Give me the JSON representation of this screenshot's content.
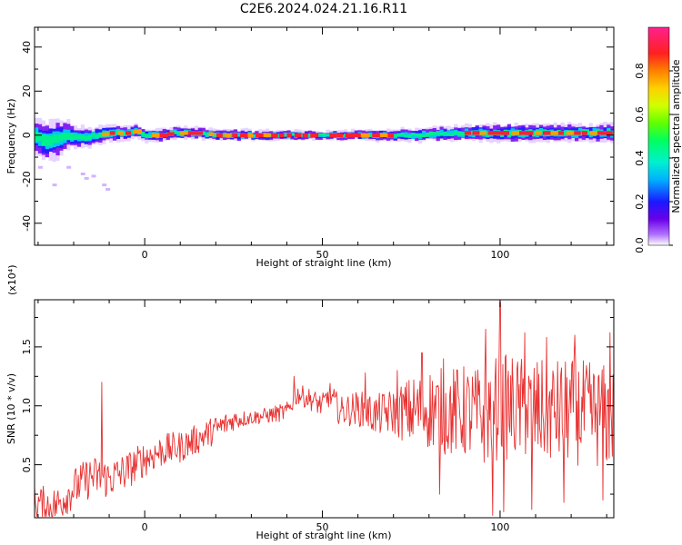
{
  "title": "C2E6.2024.024.21.16.R11",
  "chart_data": [
    {
      "type": "heatmap",
      "xlabel": "Height of straight line (km)",
      "ylabel": "Frequency (Hz)",
      "xlim": [
        -31,
        132
      ],
      "ylim": [
        -50,
        49
      ],
      "xticks": [
        0,
        50,
        100
      ],
      "yticks": [
        -40,
        -20,
        0,
        20,
        40
      ],
      "colorbar": {
        "label": "Normalized spectral amplitude",
        "range": [
          0.0,
          1.0
        ],
        "ticks": [
          "0.0",
          "0.2",
          "0.4",
          "0.6",
          "0.8"
        ]
      },
      "band": {
        "center_hz": [
          [
            -31,
            0
          ],
          [
            -28,
            -3
          ],
          [
            -25,
            -2
          ],
          [
            -22,
            0
          ],
          [
            -19,
            -1
          ],
          [
            -16,
            -1
          ],
          [
            -13,
            0
          ],
          [
            -10,
            1
          ],
          [
            -5,
            1
          ],
          [
            -2,
            2
          ],
          [
            0,
            0
          ],
          [
            5,
            0
          ],
          [
            8,
            1
          ],
          [
            15,
            1
          ],
          [
            20,
            0
          ],
          [
            60,
            0
          ],
          [
            75,
            0
          ],
          [
            90,
            1
          ],
          [
            100,
            1
          ],
          [
            110,
            1
          ],
          [
            120,
            1
          ],
          [
            125,
            1
          ],
          [
            132,
            1
          ]
        ],
        "halfwidth_hz": [
          [
            -31,
            8
          ],
          [
            -25,
            9
          ],
          [
            -20,
            5
          ],
          [
            -13,
            4
          ],
          [
            0,
            3
          ],
          [
            50,
            2
          ],
          [
            80,
            3
          ],
          [
            100,
            4
          ],
          [
            132,
            4
          ]
        ],
        "peak_segments_km": [
          [
            -12,
            -2
          ],
          [
            2,
            8
          ],
          [
            10,
            15
          ],
          [
            18,
            48
          ],
          [
            52,
            62
          ],
          [
            64,
            70
          ],
          [
            90,
            132
          ]
        ],
        "scatter_tail": [
          {
            "x": -18,
            "y": -17
          },
          {
            "x": -17,
            "y": -19
          },
          {
            "x": -15,
            "y": -18
          },
          {
            "x": -12,
            "y": -22
          },
          {
            "x": -11,
            "y": -24
          },
          {
            "x": -22,
            "y": -14
          },
          {
            "x": -26,
            "y": -22
          },
          {
            "x": -30,
            "y": -14
          }
        ]
      }
    },
    {
      "type": "line",
      "xlabel": "Height of straight line (km)",
      "ylabel": "SNR (10 * v/v)",
      "multiplier": "(x10⁴)",
      "xlim": [
        -31,
        132
      ],
      "ylim": [
        0.05,
        1.9
      ],
      "xticks": [
        0,
        50,
        100
      ],
      "yticks": [
        0.5,
        1.0,
        1.5
      ],
      "color": "#e83030",
      "envelope": [
        [
          -31,
          0.18
        ],
        [
          -25,
          0.15
        ],
        [
          -20,
          0.3
        ],
        [
          -15,
          0.4
        ],
        [
          -10,
          0.38
        ],
        [
          -5,
          0.45
        ],
        [
          0,
          0.55
        ],
        [
          5,
          0.62
        ],
        [
          10,
          0.65
        ],
        [
          15,
          0.72
        ],
        [
          20,
          0.8
        ],
        [
          25,
          0.88
        ],
        [
          30,
          0.9
        ],
        [
          35,
          0.92
        ],
        [
          40,
          0.95
        ],
        [
          43,
          1.1
        ],
        [
          47,
          1.05
        ],
        [
          50,
          1.0
        ],
        [
          52,
          1.1
        ],
        [
          55,
          0.95
        ],
        [
          60,
          0.98
        ],
        [
          65,
          0.92
        ],
        [
          70,
          0.95
        ],
        [
          75,
          0.95
        ],
        [
          80,
          0.98
        ],
        [
          85,
          0.95
        ],
        [
          90,
          0.95
        ],
        [
          95,
          0.9
        ],
        [
          100,
          1.0
        ],
        [
          110,
          0.95
        ],
        [
          120,
          0.95
        ],
        [
          132,
          0.9
        ]
      ],
      "noise_amplitude": [
        [
          -31,
          0.15
        ],
        [
          -15,
          0.18
        ],
        [
          0,
          0.15
        ],
        [
          20,
          0.12
        ],
        [
          30,
          0.06
        ],
        [
          40,
          0.08
        ],
        [
          50,
          0.1
        ],
        [
          60,
          0.15
        ],
        [
          70,
          0.2
        ],
        [
          75,
          0.3
        ],
        [
          80,
          0.35
        ],
        [
          90,
          0.4
        ],
        [
          100,
          0.45
        ],
        [
          132,
          0.45
        ]
      ],
      "peaks": [
        {
          "x": -12,
          "y": 1.2
        },
        {
          "x": 42,
          "y": 1.25
        },
        {
          "x": 62,
          "y": 1.28
        },
        {
          "x": 71,
          "y": 1.3
        },
        {
          "x": 78,
          "y": 1.45
        },
        {
          "x": 84,
          "y": 1.4
        },
        {
          "x": 96,
          "y": 1.65
        },
        {
          "x": 100,
          "y": 1.88
        },
        {
          "x": 107,
          "y": 1.62
        },
        {
          "x": 113,
          "y": 1.58
        },
        {
          "x": 121,
          "y": 1.6
        },
        {
          "x": 131,
          "y": 1.62
        }
      ],
      "troughs": [
        {
          "x": -27,
          "y": 0.08
        },
        {
          "x": 83,
          "y": 0.25
        },
        {
          "x": 98,
          "y": 0.07
        },
        {
          "x": 101,
          "y": 0.1
        },
        {
          "x": 109,
          "y": 0.12
        },
        {
          "x": 118,
          "y": 0.18
        },
        {
          "x": 129,
          "y": 0.2
        }
      ]
    }
  ]
}
